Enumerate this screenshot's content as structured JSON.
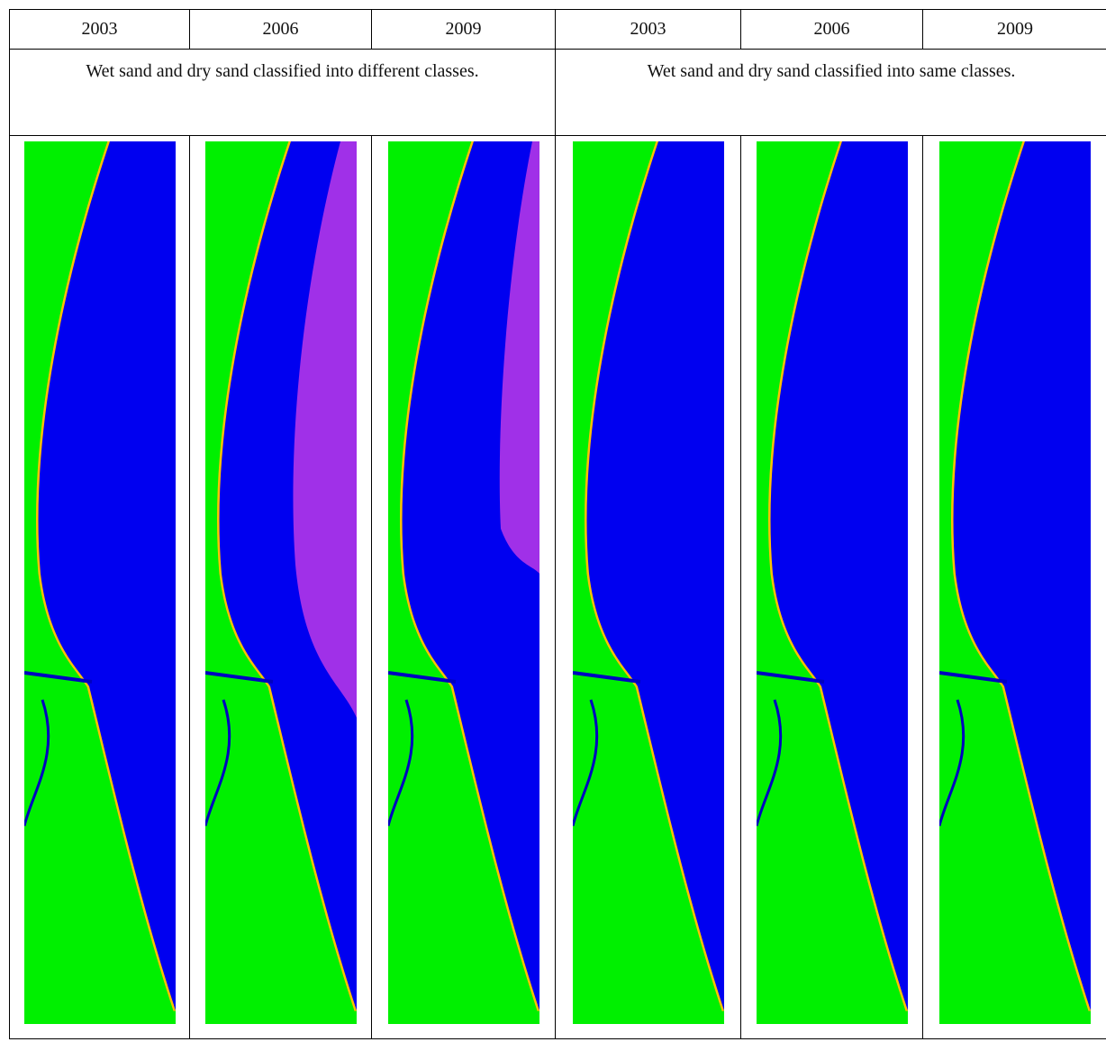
{
  "table": {
    "years": [
      "2003",
      "2006",
      "2009",
      "2003",
      "2006",
      "2009"
    ],
    "descriptions": [
      "Wet sand and dry sand classified into different classes.",
      "Wet sand and dry sand classified into same classes."
    ]
  }
}
